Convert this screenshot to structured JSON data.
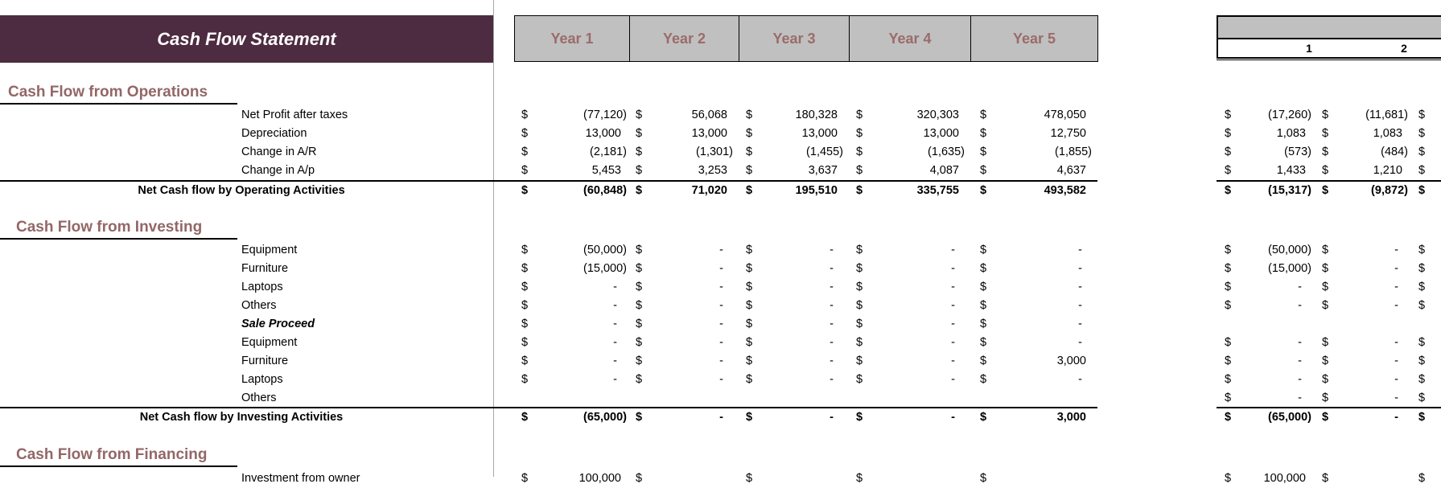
{
  "title": "Cash Flow Statement",
  "year_headers": [
    "Year 1",
    "Year 2",
    "Year 3",
    "Year 4",
    "Year 5"
  ],
  "monthly_headers": [
    "1",
    "2"
  ],
  "currency_symbol": "$",
  "colors": {
    "banner": "#4d2b40",
    "section_header": "#936767",
    "year_header_text": "#9b6b6b",
    "year_header_bg": "#c0c0c0"
  },
  "operations": {
    "header": "Cash Flow from Operations",
    "rows": [
      {
        "label": "Net Profit after taxes",
        "years": [
          "(77,120)",
          "56,068",
          "180,328",
          "320,303",
          "478,050"
        ],
        "months": [
          "(17,260)",
          "(11,681)"
        ]
      },
      {
        "label": "Depreciation",
        "years": [
          "13,000",
          "13,000",
          "13,000",
          "13,000",
          "12,750"
        ],
        "months": [
          "1,083",
          "1,083"
        ]
      },
      {
        "label": "Change in A/R",
        "years": [
          "(2,181)",
          "(1,301)",
          "(1,455)",
          "(1,635)",
          "(1,855)"
        ],
        "months": [
          "(573)",
          "(484)"
        ]
      },
      {
        "label": "Change in A/p",
        "years": [
          "5,453",
          "3,253",
          "3,637",
          "4,087",
          "4,637"
        ],
        "months": [
          "1,433",
          "1,210"
        ]
      }
    ],
    "total": {
      "label": "Net Cash flow by Operating Activities",
      "years": [
        "(60,848)",
        "71,020",
        "195,510",
        "335,755",
        "493,582"
      ],
      "months": [
        "(15,317)",
        "(9,872)"
      ]
    }
  },
  "investing": {
    "header": "Cash Flow from Investing",
    "rows": [
      {
        "label": "Equipment",
        "years": [
          "(50,000)",
          "-",
          "-",
          "-",
          "-"
        ],
        "months": [
          "(50,000)",
          "-"
        ]
      },
      {
        "label": "Furniture",
        "years": [
          "(15,000)",
          "-",
          "-",
          "-",
          "-"
        ],
        "months": [
          "(15,000)",
          "-"
        ]
      },
      {
        "label": "Laptops",
        "years": [
          "-",
          "-",
          "-",
          "-",
          "-"
        ],
        "months": [
          "-",
          "-"
        ]
      },
      {
        "label": "Others",
        "years": [
          "-",
          "-",
          "-",
          "-",
          "-"
        ],
        "months": [
          "-",
          "-"
        ]
      },
      {
        "label": "Sale Proceed",
        "style": "bold-italic",
        "years": [
          "-",
          "-",
          "-",
          "-",
          "-"
        ],
        "months": null
      },
      {
        "label": "Equipment",
        "years": [
          "-",
          "-",
          "-",
          "-",
          "-"
        ],
        "months": [
          "-",
          "-"
        ]
      },
      {
        "label": "Furniture",
        "years": [
          "-",
          "-",
          "-",
          "-",
          "3,000"
        ],
        "months": [
          "-",
          "-"
        ]
      },
      {
        "label": "Laptops",
        "years": [
          "-",
          "-",
          "-",
          "-",
          "-"
        ],
        "months": [
          "-",
          "-"
        ]
      },
      {
        "label": "Others",
        "years": null,
        "months": [
          "-",
          "-"
        ]
      }
    ],
    "total": {
      "label": "Net Cash flow by Investing Activities",
      "years": [
        "(65,000)",
        "-",
        "-",
        "-",
        "3,000"
      ],
      "months": [
        "(65,000)",
        "-"
      ]
    }
  },
  "financing": {
    "header": "Cash Flow from Financing",
    "rows": [
      {
        "label": "Investment from owner",
        "years": [
          "100,000",
          "",
          "",
          "",
          ""
        ],
        "months": [
          "100,000",
          ""
        ]
      }
    ]
  }
}
